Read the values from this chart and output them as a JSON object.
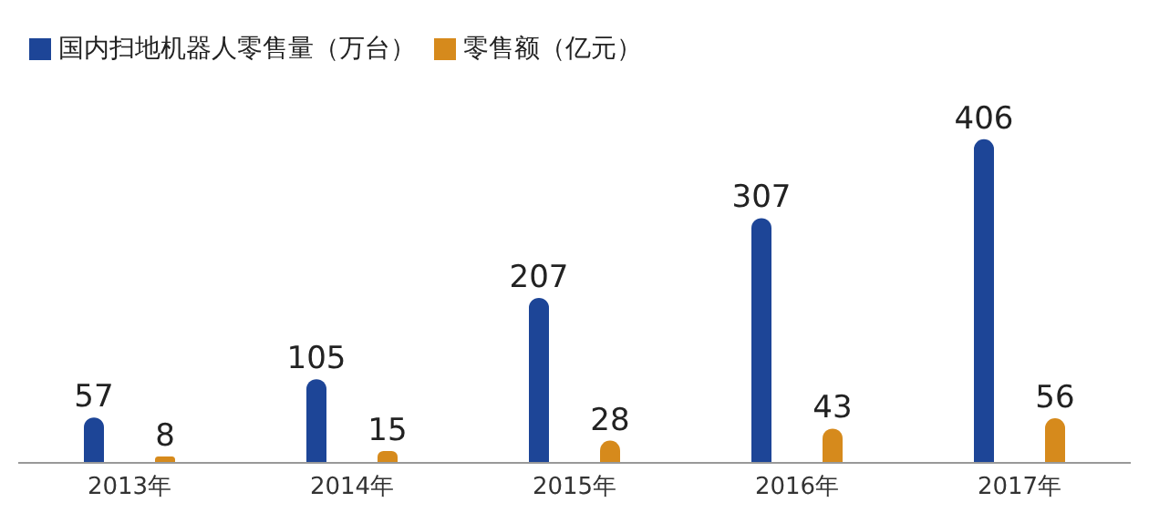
{
  "chart_data": {
    "type": "bar",
    "categories": [
      "2013年",
      "2014年",
      "2015年",
      "2016年",
      "2017年"
    ],
    "series": [
      {
        "name": "国内扫地机器人零售量（万台）",
        "color": "#1d4597",
        "values": [
          57,
          105,
          207,
          307,
          406
        ]
      },
      {
        "name": "零售额（亿元）",
        "color": "#d68a1c",
        "values": [
          8,
          15,
          28,
          43,
          56
        ]
      }
    ],
    "legend": "top left",
    "tick_labels": "x",
    "data_labels": true
  }
}
